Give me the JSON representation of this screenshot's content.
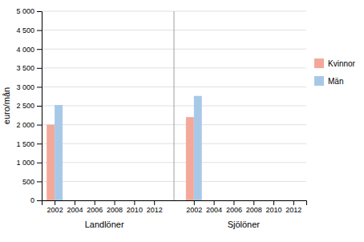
{
  "chart_data": {
    "type": "bar",
    "categories": [
      "2002",
      "2004",
      "2006",
      "2008",
      "2010",
      "2012",
      "2002",
      "2004",
      "2006",
      "2008",
      "2010",
      "2012"
    ],
    "series": [
      {
        "name": "Kvinnor",
        "color": "#F4A89A",
        "values": [
          2000,
          0,
          0,
          0,
          0,
          0,
          2200,
          0,
          0,
          0,
          0,
          0
        ]
      },
      {
        "name": "Män",
        "color": "#A8C8E8",
        "values": [
          2520,
          0,
          0,
          0,
          0,
          0,
          2760,
          0,
          0,
          0,
          0,
          0
        ]
      }
    ],
    "annotations": [
      "Landlöner",
      "Sjölöner"
    ],
    "ylabel": "euro/mån",
    "ylim": [
      0,
      5000
    ],
    "yticks": [
      0,
      500,
      {
        "value": 1000,
        "label": "1 000"
      },
      {
        "value": 1500,
        "label": "1 500"
      },
      {
        "value": 2000,
        "label": "2 000"
      },
      {
        "value": 2500,
        "label": "2 500"
      },
      {
        "value": 3000,
        "label": "3 000"
      },
      {
        "value": 3500,
        "label": "3 500"
      },
      {
        "value": 4000,
        "label": "4 000"
      },
      {
        "value": 4500,
        "label": "4 500"
      },
      {
        "value": 5000,
        "label": "5 000"
      }
    ],
    "grid": true,
    "legend": "right"
  }
}
